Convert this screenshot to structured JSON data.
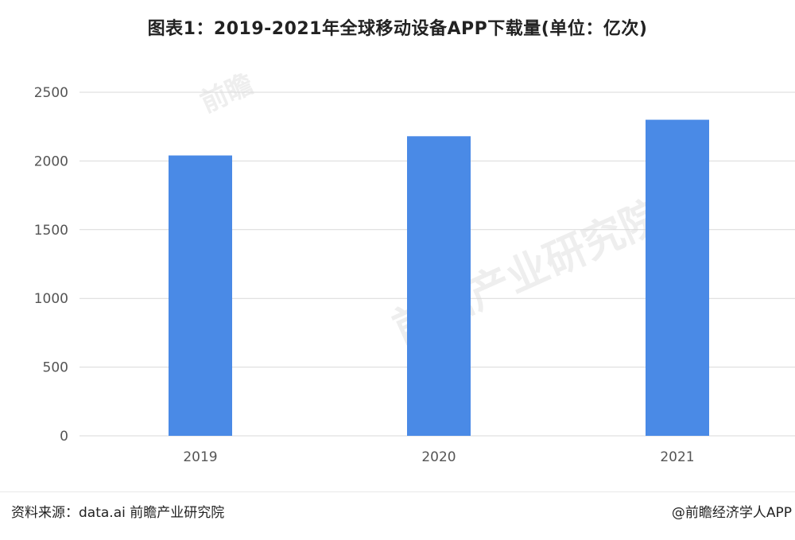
{
  "title": "图表1：2019-2021年全球移动设备APP下载量(单位：亿次)",
  "watermarks": {
    "text": "前瞻产业研究院",
    "logo_text": "前瞻"
  },
  "footer": {
    "source": "资料来源：data.ai 前瞻产业研究院",
    "credit": "@前瞻经济学人APP"
  },
  "chart_data": {
    "type": "bar",
    "title": "图表1：2019-2021年全球移动设备APP下载量(单位：亿次)",
    "categories": [
      "2019",
      "2020",
      "2021"
    ],
    "values": [
      2040,
      2180,
      2300
    ],
    "xlabel": "",
    "ylabel": "",
    "ylim": [
      0,
      2500
    ],
    "yticks": [
      "0",
      "500",
      "1000",
      "1500",
      "2000",
      "2500"
    ],
    "grid": true,
    "legend": "none",
    "bar_color": "#4a8ae6",
    "grid_color": "#d9d9d9"
  }
}
